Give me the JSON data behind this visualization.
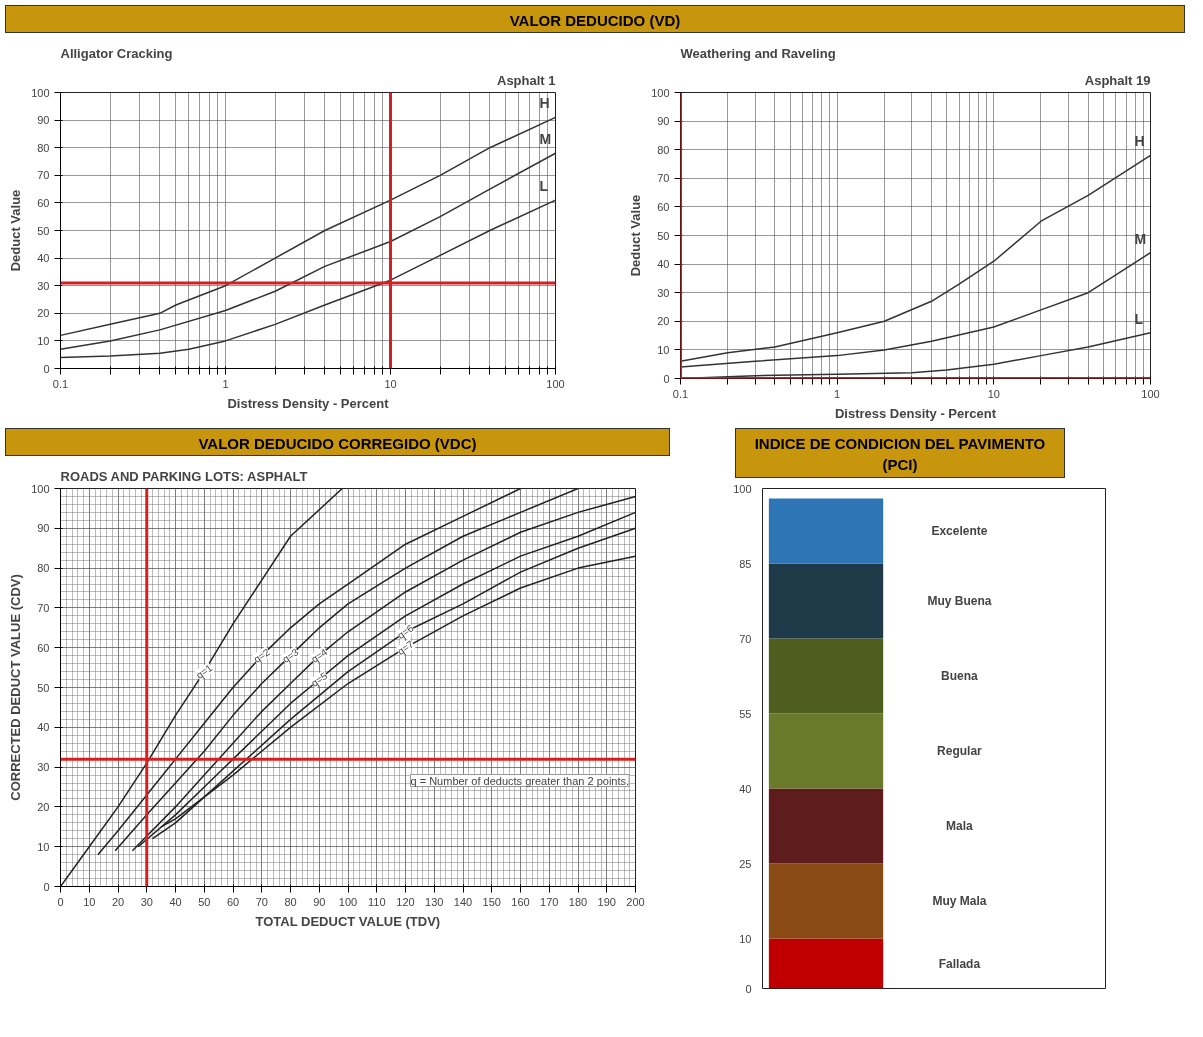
{
  "chart_data": [
    {
      "type": "line",
      "title": "Alligator Cracking",
      "subtitle": "Asphalt 1",
      "xlabel": "Distress Density - Percent",
      "ylabel": "Deduct Value",
      "annotations": [
        "VALOR DEDUCIDO (VD)"
      ],
      "log": "x",
      "grid": true,
      "xlim": [
        0.1,
        100
      ],
      "ylim": [
        0,
        100
      ],
      "xticks": [
        0.1,
        {
          "value": 0.2,
          "label": null
        },
        {
          "value": 0.3,
          "label": null
        },
        {
          "value": 0.4,
          "label": null
        },
        {
          "value": 0.5,
          "label": null
        },
        {
          "value": 0.6,
          "label": null
        },
        {
          "value": 0.7,
          "label": null
        },
        {
          "value": 0.8,
          "label": null
        },
        {
          "value": 0.9,
          "label": null
        },
        1,
        {
          "value": 2,
          "label": null
        },
        {
          "value": 3,
          "label": null
        },
        {
          "value": 4,
          "label": null
        },
        {
          "value": 5,
          "label": null
        },
        {
          "value": 6,
          "label": null
        },
        {
          "value": 7,
          "label": null
        },
        {
          "value": 8,
          "label": null
        },
        {
          "value": 9,
          "label": null
        },
        10,
        {
          "value": 20,
          "label": null
        },
        {
          "value": 30,
          "label": null
        },
        {
          "value": 40,
          "label": null
        },
        {
          "value": 50,
          "label": null
        },
        {
          "value": 60,
          "label": null
        },
        {
          "value": 70,
          "label": null
        },
        {
          "value": 80,
          "label": null
        },
        {
          "value": 90,
          "label": null
        },
        100
      ],
      "yticks": [
        0,
        10,
        20,
        30,
        40,
        50,
        60,
        70,
        80,
        90,
        100
      ],
      "series": [
        {
          "name": "H",
          "color": "#333333",
          "x": [
            0.1,
            0.2,
            0.4,
            0.5,
            1,
            2,
            4,
            10,
            20,
            40,
            100
          ],
          "values": [
            12,
            16,
            20,
            23,
            30,
            40,
            50,
            61,
            70,
            80,
            91
          ]
        },
        {
          "name": "M",
          "color": "#333333",
          "x": [
            0.1,
            0.2,
            0.4,
            1,
            2,
            4,
            10,
            20,
            40,
            100
          ],
          "values": [
            7,
            10,
            14,
            21,
            28,
            37,
            46,
            55,
            65,
            78
          ]
        },
        {
          "name": "L",
          "color": "#333333",
          "x": [
            0.1,
            0.2,
            0.4,
            0.6,
            1,
            2,
            4,
            10,
            20,
            40,
            100
          ],
          "values": [
            4,
            4.5,
            5.5,
            7,
            10,
            16,
            23,
            32,
            41,
            50,
            61
          ]
        }
      ],
      "ref_lines": [
        {
          "axis": "y",
          "value": 31,
          "color": "#d62020"
        },
        {
          "axis": "x",
          "value": 10,
          "color": "#d62020"
        }
      ]
    },
    {
      "type": "line",
      "title": "Weathering and Raveling",
      "subtitle": "Asphalt 19",
      "xlabel": "Distress Density - Percent",
      "ylabel": "Deduct Value",
      "log": "x",
      "grid": true,
      "xlim": [
        0.1,
        100
      ],
      "ylim": [
        0,
        100
      ],
      "xticks": [
        0.1,
        {
          "value": 0.2,
          "label": null
        },
        {
          "value": 0.3,
          "label": null
        },
        {
          "value": 0.4,
          "label": null
        },
        {
          "value": 0.5,
          "label": null
        },
        {
          "value": 0.6,
          "label": null
        },
        {
          "value": 0.7,
          "label": null
        },
        {
          "value": 0.8,
          "label": null
        },
        {
          "value": 0.9,
          "label": null
        },
        1,
        {
          "value": 2,
          "label": null
        },
        {
          "value": 3,
          "label": null
        },
        {
          "value": 4,
          "label": null
        },
        {
          "value": 5,
          "label": null
        },
        {
          "value": 6,
          "label": null
        },
        {
          "value": 7,
          "label": null
        },
        {
          "value": 8,
          "label": null
        },
        {
          "value": 9,
          "label": null
        },
        10,
        {
          "value": 20,
          "label": null
        },
        {
          "value": 30,
          "label": null
        },
        {
          "value": 40,
          "label": null
        },
        {
          "value": 50,
          "label": null
        },
        {
          "value": 60,
          "label": null
        },
        {
          "value": 70,
          "label": null
        },
        {
          "value": 80,
          "label": null
        },
        {
          "value": 90,
          "label": null
        },
        100
      ],
      "yticks": [
        0,
        10,
        20,
        30,
        40,
        50,
        60,
        70,
        80,
        90,
        100
      ],
      "series": [
        {
          "name": "H",
          "color": "#333333",
          "x": [
            0.1,
            0.2,
            0.4,
            1,
            2,
            4,
            6,
            10,
            20,
            40,
            100
          ],
          "values": [
            6,
            9,
            11,
            16,
            20,
            27,
            33,
            41,
            55,
            64,
            78
          ]
        },
        {
          "name": "M",
          "color": "#333333",
          "x": [
            0.1,
            0.3,
            1,
            2,
            4,
            10,
            20,
            40,
            100
          ],
          "values": [
            4,
            6,
            8,
            10,
            13,
            18,
            24,
            30,
            44
          ]
        },
        {
          "name": "L",
          "color": "#333333",
          "x": [
            0.1,
            0.3,
            1,
            3,
            5,
            10,
            20,
            40,
            100
          ],
          "values": [
            0,
            1,
            1.5,
            2,
            3,
            5,
            8,
            11,
            16
          ]
        }
      ],
      "ref_lines": [
        {
          "axis": "y",
          "value": 0,
          "color": "#d62020"
        },
        {
          "axis": "x",
          "value": 0.1,
          "color": "#d62020"
        }
      ]
    },
    {
      "type": "line",
      "title": "ROADS AND PARKING LOTS:  ASPHALT",
      "xlabel": "TOTAL DEDUCT VALUE (TDV)",
      "ylabel": "CORRECTED DEDUCT VALUE (CDV)",
      "annotations": [
        "VALOR DEDUCIDO CORREGIDO (VDC)",
        "q = Number of deducts greater than 2 points."
      ],
      "grid": true,
      "xlim": [
        0,
        200
      ],
      "ylim": [
        0,
        100
      ],
      "xticks": [
        0,
        10,
        20,
        30,
        40,
        50,
        60,
        70,
        80,
        90,
        100,
        110,
        120,
        130,
        140,
        150,
        160,
        170,
        180,
        190,
        200
      ],
      "yticks": [
        0,
        10,
        20,
        30,
        40,
        50,
        60,
        70,
        80,
        90,
        100
      ],
      "series": [
        {
          "name": "q=1",
          "color": "#222222",
          "x": [
            0,
            10,
            20,
            30,
            40,
            50,
            60,
            70,
            80,
            98
          ],
          "values": [
            0,
            10,
            20,
            31,
            43,
            54,
            66,
            77,
            88,
            100
          ]
        },
        {
          "name": "q=2",
          "color": "#222222",
          "x": [
            13,
            20,
            30,
            40,
            50,
            60,
            70,
            80,
            90,
            100,
            120,
            140,
            160
          ],
          "values": [
            8,
            14,
            23,
            32,
            41,
            50,
            58,
            65,
            71,
            76,
            86,
            93,
            100
          ]
        },
        {
          "name": "q=3",
          "color": "#222222",
          "x": [
            19,
            30,
            40,
            50,
            60,
            70,
            80,
            90,
            100,
            120,
            140,
            160,
            180
          ],
          "values": [
            9,
            18,
            26,
            34,
            43,
            51,
            58,
            65,
            71,
            80,
            88,
            94,
            100
          ]
        },
        {
          "name": "q=4",
          "color": "#222222",
          "x": [
            25,
            40,
            50,
            60,
            70,
            80,
            90,
            100,
            120,
            140,
            160,
            180,
            200
          ],
          "values": [
            9,
            20,
            28,
            36,
            44,
            51,
            58,
            64,
            74,
            82,
            89,
            94,
            98
          ]
        },
        {
          "name": "q=5",
          "color": "#222222",
          "x": [
            27,
            40,
            50,
            60,
            70,
            80,
            90,
            100,
            120,
            140,
            160,
            180,
            200
          ],
          "values": [
            10,
            18,
            25,
            32,
            39,
            46,
            52,
            58,
            68,
            76,
            83,
            88,
            94
          ]
        },
        {
          "name": "q=6",
          "color": "#222222",
          "x": [
            32,
            40,
            60,
            80,
            100,
            120,
            140,
            160,
            180,
            200
          ],
          "values": [
            12,
            16,
            29,
            42,
            54,
            64,
            71,
            79,
            85,
            90
          ]
        },
        {
          "name": "q=7",
          "color": "#222222",
          "x": [
            35,
            40,
            60,
            80,
            100,
            120,
            140,
            160,
            180,
            200
          ],
          "values": [
            15,
            17,
            28,
            40,
            51,
            60,
            68,
            75,
            80,
            83
          ]
        }
      ],
      "ref_lines": [
        {
          "axis": "y",
          "value": 32,
          "color": "#d62020"
        },
        {
          "axis": "x",
          "value": 30,
          "color": "#d62020"
        }
      ]
    },
    {
      "type": "bar",
      "stacked": true,
      "title": "INDICE DE CONDICION DEL PAVIMENTO (PCI)",
      "categories": [
        null
      ],
      "ylim": [
        0,
        100
      ],
      "yticks": [
        0,
        10,
        25,
        40,
        55,
        70,
        85,
        100
      ],
      "tick_labels": "y",
      "grid": false,
      "series": [
        {
          "name": "Fallada",
          "color": "#c00000",
          "values": [
            10
          ]
        },
        {
          "name": "Muy Mala",
          "color": "#8a4a14",
          "values": [
            15
          ]
        },
        {
          "name": "Mala",
          "color": "#5e1c1c",
          "values": [
            15
          ]
        },
        {
          "name": "Regular",
          "color": "#6b7a2a",
          "values": [
            15
          ]
        },
        {
          "name": "Buena",
          "color": "#4f5e1e",
          "values": [
            15
          ]
        },
        {
          "name": "Muy Buena",
          "color": "#1e3a48",
          "values": [
            15
          ]
        },
        {
          "name": "Excelente",
          "color": "#2e75b6",
          "values": [
            13
          ]
        }
      ]
    }
  ]
}
